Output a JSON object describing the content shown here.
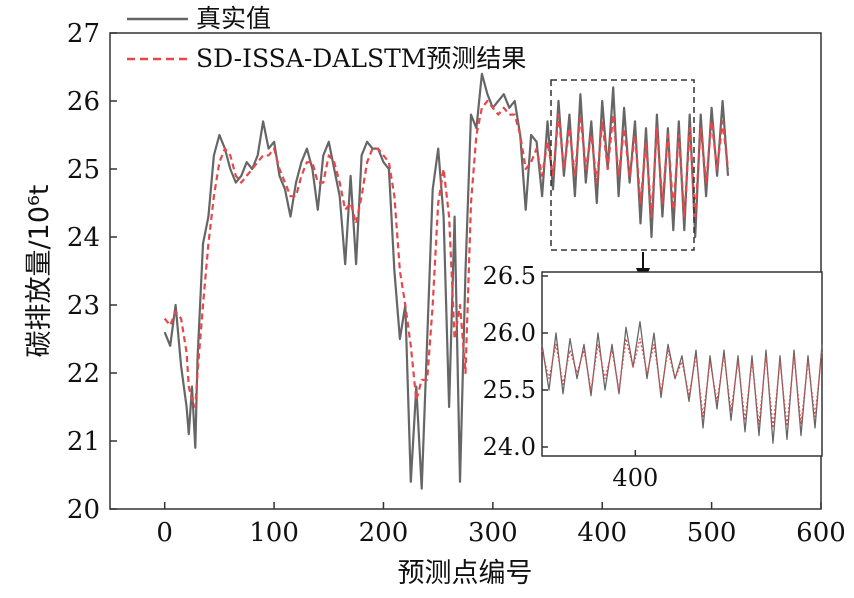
{
  "chart_data": [
    {
      "type": "line",
      "title": "",
      "xlabel": "预测点编号",
      "ylabel": "碳排放量/10⁶t",
      "xlim": [
        -50,
        600
      ],
      "ylim": [
        20,
        27
      ],
      "xticks": [
        "0",
        "100",
        "200",
        "300",
        "400",
        "500",
        "600"
      ],
      "yticks": [
        "20",
        "21",
        "22",
        "23",
        "24",
        "25",
        "26",
        "27"
      ],
      "legend_position": "top-left",
      "grid": false,
      "colors": {
        "actual": "#666666",
        "predicted": "#e8474a"
      },
      "series": [
        {
          "name": "真实值",
          "x": [
            0,
            5,
            10,
            15,
            20,
            22,
            25,
            28,
            30,
            35,
            40,
            45,
            50,
            55,
            60,
            65,
            70,
            75,
            80,
            85,
            90,
            95,
            100,
            105,
            110,
            115,
            120,
            125,
            130,
            135,
            140,
            145,
            150,
            155,
            160,
            165,
            170,
            175,
            180,
            185,
            190,
            195,
            200,
            205,
            210,
            215,
            220,
            225,
            230,
            235,
            240,
            245,
            250,
            255,
            260,
            265,
            270,
            275,
            280,
            285,
            290,
            295,
            300,
            305,
            310,
            315,
            320,
            325,
            330,
            335,
            340,
            345,
            350,
            355,
            360,
            365,
            370,
            375,
            380,
            385,
            390,
            395,
            400,
            405,
            410,
            415,
            420,
            425,
            430,
            435,
            440,
            445,
            450,
            455,
            460,
            465,
            470,
            475,
            480,
            485,
            490,
            495,
            500,
            505,
            510,
            515
          ],
          "y": [
            22.6,
            22.4,
            23.0,
            22.1,
            21.5,
            21.1,
            21.8,
            20.9,
            22.2,
            23.9,
            24.3,
            25.2,
            25.5,
            25.3,
            25.0,
            24.8,
            24.9,
            25.1,
            25.0,
            25.2,
            25.7,
            25.3,
            25.4,
            24.9,
            24.7,
            24.3,
            24.8,
            25.1,
            25.3,
            25.0,
            24.4,
            25.2,
            25.4,
            25.0,
            24.6,
            23.6,
            24.9,
            23.6,
            25.2,
            25.4,
            25.3,
            25.3,
            25.1,
            25.0,
            23.5,
            22.5,
            23.0,
            20.4,
            21.8,
            20.3,
            22.5,
            24.7,
            25.3,
            24.3,
            21.5,
            24.3,
            20.4,
            23.5,
            25.8,
            25.6,
            26.4,
            26.1,
            25.9,
            26.0,
            26.1,
            25.9,
            26.0,
            25.5,
            24.4,
            25.5,
            25.4,
            24.6,
            25.7,
            24.7,
            26.0,
            24.9,
            25.8,
            24.6,
            26.1,
            24.8,
            25.7,
            24.5,
            26.0,
            25.0,
            26.2,
            24.6,
            25.9,
            24.8,
            25.7,
            24.2,
            25.6,
            24.0,
            25.8,
            24.3,
            25.6,
            24.1,
            25.7,
            24.1,
            25.8,
            24.0,
            25.8,
            24.6,
            25.9,
            24.9,
            26.0,
            24.9
          ]
        },
        {
          "name": "SD-ISSA-DALSTM预测结果",
          "x": [
            0,
            5,
            10,
            15,
            20,
            22,
            25,
            28,
            30,
            35,
            40,
            45,
            50,
            55,
            60,
            65,
            70,
            75,
            80,
            85,
            90,
            95,
            100,
            105,
            110,
            115,
            120,
            125,
            130,
            135,
            140,
            145,
            150,
            155,
            160,
            165,
            170,
            175,
            180,
            185,
            190,
            195,
            200,
            205,
            210,
            215,
            220,
            225,
            230,
            235,
            240,
            245,
            250,
            255,
            260,
            265,
            270,
            275,
            280,
            285,
            290,
            295,
            300,
            305,
            310,
            315,
            320,
            325,
            330,
            335,
            340,
            345,
            350,
            355,
            360,
            365,
            370,
            375,
            380,
            385,
            390,
            395,
            400,
            405,
            410,
            415,
            420,
            425,
            430,
            435,
            440,
            445,
            450,
            455,
            460,
            465,
            470,
            475,
            480,
            485,
            490,
            495,
            500,
            505,
            510,
            515
          ],
          "y": [
            22.8,
            22.7,
            22.9,
            22.8,
            22.3,
            21.8,
            21.6,
            21.5,
            22.0,
            23.0,
            23.9,
            24.6,
            25.1,
            25.3,
            25.2,
            24.9,
            24.8,
            24.9,
            25.0,
            25.1,
            25.2,
            25.2,
            25.3,
            25.0,
            24.8,
            24.6,
            24.6,
            24.9,
            25.1,
            25.1,
            24.8,
            24.8,
            25.2,
            25.1,
            24.8,
            24.4,
            24.5,
            24.2,
            24.6,
            25.1,
            25.3,
            25.3,
            25.2,
            25.1,
            24.6,
            23.5,
            23.0,
            22.4,
            21.6,
            21.9,
            21.9,
            23.0,
            24.5,
            25.0,
            24.3,
            22.5,
            23.0,
            22.0,
            24.5,
            25.5,
            25.9,
            26.0,
            25.9,
            25.8,
            25.9,
            25.8,
            25.8,
            25.5,
            25.0,
            25.1,
            25.3,
            24.9,
            25.4,
            24.9,
            25.8,
            25.0,
            25.6,
            24.9,
            25.8,
            25.0,
            25.5,
            24.8,
            25.7,
            25.0,
            25.8,
            24.9,
            25.6,
            24.9,
            25.5,
            24.5,
            25.4,
            24.3,
            25.6,
            24.5,
            25.5,
            24.4,
            25.5,
            24.3,
            25.6,
            24.3,
            25.6,
            24.8,
            25.7,
            25.0,
            25.7,
            25.0
          ]
        }
      ]
    },
    {
      "type": "line",
      "title": "",
      "xlabel": "",
      "ylabel": "",
      "xlim": [
        360,
        480
      ],
      "ylim": [
        24.0,
        26.5
      ],
      "xticks": [
        "400"
      ],
      "yticks": [
        "24.0",
        "25.5",
        "26.0",
        "26.5"
      ],
      "series": [
        {
          "name": "真实值",
          "x": [
            360,
            363,
            366,
            369,
            372,
            375,
            378,
            381,
            384,
            387,
            390,
            393,
            396,
            399,
            402,
            405,
            408,
            411,
            414,
            417,
            420,
            423,
            426,
            429,
            432,
            435,
            438,
            441,
            444,
            447,
            450,
            453,
            456,
            459,
            462,
            465,
            468,
            471,
            474,
            477,
            480
          ],
          "y": [
            25.9,
            25.5,
            26.0,
            25.4,
            25.95,
            25.6,
            25.9,
            25.35,
            26.0,
            25.5,
            25.9,
            25.4,
            26.05,
            25.7,
            26.1,
            25.6,
            26.0,
            25.3,
            25.9,
            25.6,
            25.8,
            25.2,
            25.85,
            24.5,
            25.8,
            25.0,
            25.85,
            24.7,
            25.8,
            24.4,
            25.8,
            24.3,
            25.85,
            24.1,
            25.8,
            24.2,
            25.85,
            24.3,
            25.8,
            24.5,
            25.9
          ]
        },
        {
          "name": "SD-ISSA-DALSTM预测结果",
          "x": [
            360,
            363,
            366,
            369,
            372,
            375,
            378,
            381,
            384,
            387,
            390,
            393,
            396,
            399,
            402,
            405,
            408,
            411,
            414,
            417,
            420,
            423,
            426,
            429,
            432,
            435,
            438,
            441,
            444,
            447,
            450,
            453,
            456,
            459,
            462,
            465,
            468,
            471,
            474,
            477,
            480
          ],
          "y": [
            25.85,
            25.6,
            25.9,
            25.55,
            25.85,
            25.65,
            25.85,
            25.5,
            25.9,
            25.6,
            25.85,
            25.5,
            25.95,
            25.7,
            25.95,
            25.65,
            25.9,
            25.45,
            25.85,
            25.6,
            25.75,
            25.35,
            25.8,
            24.8,
            25.75,
            25.2,
            25.8,
            24.95,
            25.75,
            24.7,
            25.75,
            24.6,
            25.8,
            24.5,
            25.75,
            24.55,
            25.8,
            24.6,
            25.75,
            24.8,
            25.85
          ]
        }
      ]
    }
  ]
}
